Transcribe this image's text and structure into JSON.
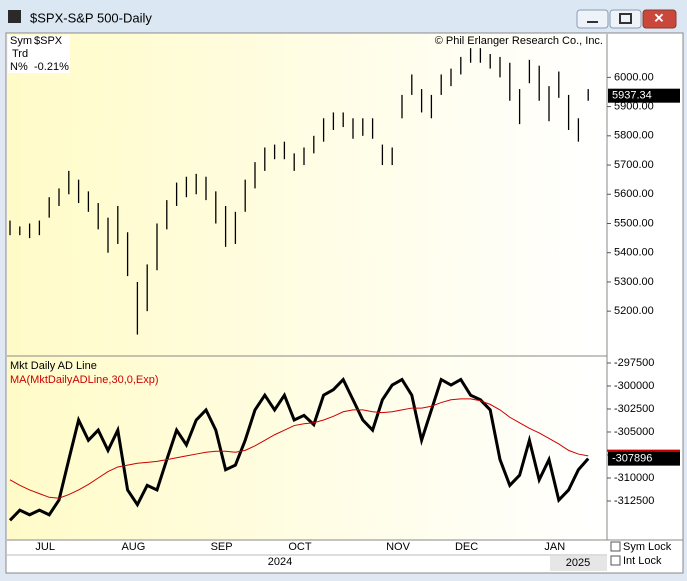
{
  "window": {
    "title": "$SPX-S&P 500-Daily"
  },
  "info": {
    "sym_label": "Sym",
    "sym": "$SPX",
    "trd": "Trd",
    "pct_label": "N%",
    "pct": "-0.21%"
  },
  "copyright": "© Phil Erlanger Research Co., Inc.",
  "chart_data": [
    {
      "type": "ohlc",
      "color": "#000000",
      "last_value": 5937.34,
      "high": [
        5510,
        5490,
        5500,
        5510,
        5590,
        5620,
        5680,
        5650,
        5610,
        5570,
        5520,
        5560,
        5470,
        5300,
        5360,
        5500,
        5580,
        5640,
        5660,
        5670,
        5660,
        5610,
        5560,
        5540,
        5650,
        5710,
        5760,
        5770,
        5780,
        5740,
        5760,
        5800,
        5860,
        5880,
        5880,
        5860,
        5860,
        5860,
        5770,
        5760,
        5940,
        6010,
        5960,
        5940,
        6010,
        6030,
        6070,
        6100,
        6100,
        6080,
        6070,
        6050,
        5960,
        6060,
        6040,
        5970,
        6020,
        5940,
        5860,
        5960
      ],
      "low": [
        5460,
        5460,
        5450,
        5460,
        5520,
        5560,
        5600,
        5570,
        5540,
        5480,
        5400,
        5430,
        5320,
        5120,
        5200,
        5340,
        5480,
        5560,
        5590,
        5600,
        5580,
        5500,
        5420,
        5430,
        5540,
        5620,
        5680,
        5720,
        5720,
        5680,
        5700,
        5740,
        5780,
        5820,
        5830,
        5790,
        5800,
        5790,
        5700,
        5700,
        5860,
        5940,
        5880,
        5860,
        5940,
        5970,
        6010,
        6050,
        6050,
        6030,
        6000,
        5920,
        5840,
        5980,
        5920,
        5850,
        5930,
        5820,
        5780,
        5920
      ],
      "ylim": [
        5050,
        6145
      ],
      "yticks": [
        {
          "value": 5200,
          "label": "5200.00"
        },
        {
          "value": 5300,
          "label": "5300.00"
        },
        {
          "value": 5400,
          "label": "5400.00"
        },
        {
          "value": 5500,
          "label": "5500.00"
        },
        {
          "value": 5600,
          "label": "5600.00"
        },
        {
          "value": 5700,
          "label": "5700.00"
        },
        {
          "value": 5800,
          "label": "5800.00"
        },
        {
          "value": 5900,
          "label": "5900.00"
        },
        {
          "value": 6000,
          "label": "6000.00"
        }
      ]
    },
    {
      "type": "line",
      "title": "Mkt Daily AD Line",
      "last_value": -307896,
      "categories": [
        null,
        null,
        null,
        null,
        "JUL",
        null,
        null,
        null,
        null,
        null,
        null,
        null,
        null,
        "AUG",
        null,
        null,
        null,
        null,
        null,
        null,
        null,
        null,
        "SEP",
        null,
        null,
        null,
        null,
        null,
        null,
        null,
        "OCT",
        null,
        null,
        null,
        null,
        null,
        null,
        null,
        null,
        null,
        "NOV",
        null,
        null,
        null,
        null,
        null,
        null,
        "DEC",
        null,
        null,
        null,
        null,
        null,
        null,
        null,
        null,
        "JAN",
        null,
        null,
        null
      ],
      "series": [
        {
          "name": "Mkt Daily AD Line",
          "color": "#000000",
          "values": [
            -314600,
            -313500,
            -314000,
            -313500,
            -314000,
            -312400,
            -308000,
            -303700,
            -305900,
            -304800,
            -307000,
            -304800,
            -311300,
            -312900,
            -310800,
            -311300,
            -308000,
            -304800,
            -306400,
            -303700,
            -302600,
            -304800,
            -309100,
            -308600,
            -305900,
            -302600,
            -301000,
            -302600,
            -301000,
            -303700,
            -303200,
            -304200,
            -301000,
            -300400,
            -299300,
            -301500,
            -303700,
            -304800,
            -301500,
            -299900,
            -299300,
            -301000,
            -305900,
            -302600,
            -299300,
            -299900,
            -299300,
            -301000,
            -301500,
            -302600,
            -308000,
            -310800,
            -309700,
            -305900,
            -310200,
            -308000,
            -312400,
            -311300,
            -309100,
            -307896
          ]
        },
        {
          "name": "MA(MktDailyADLine,30,0,Exp)",
          "color": "#cc0000",
          "values": [
            -310200,
            -310800,
            -311300,
            -311700,
            -312100,
            -312200,
            -311800,
            -311300,
            -310700,
            -310000,
            -309300,
            -308800,
            -308600,
            -308400,
            -308300,
            -308200,
            -308000,
            -307800,
            -307600,
            -307400,
            -307200,
            -307100,
            -307100,
            -307200,
            -307000,
            -306500,
            -305900,
            -305300,
            -304800,
            -304300,
            -304100,
            -304000,
            -303700,
            -303300,
            -302800,
            -302600,
            -302600,
            -302800,
            -302900,
            -302800,
            -302600,
            -302400,
            -302400,
            -302200,
            -301800,
            -301500,
            -301400,
            -301400,
            -301600,
            -302000,
            -302600,
            -303400,
            -304000,
            -304600,
            -305100,
            -305700,
            -306300,
            -307000,
            -307400,
            -307600
          ]
        }
      ],
      "ylim": [
        -316740,
        -296850
      ],
      "yticks": [
        -297500,
        -300000,
        -302500,
        -305000,
        -307500,
        -310000,
        -312500
      ]
    }
  ],
  "years": [
    "2024",
    "2025"
  ],
  "locks": [
    "Sym Lock",
    "Int Lock"
  ]
}
